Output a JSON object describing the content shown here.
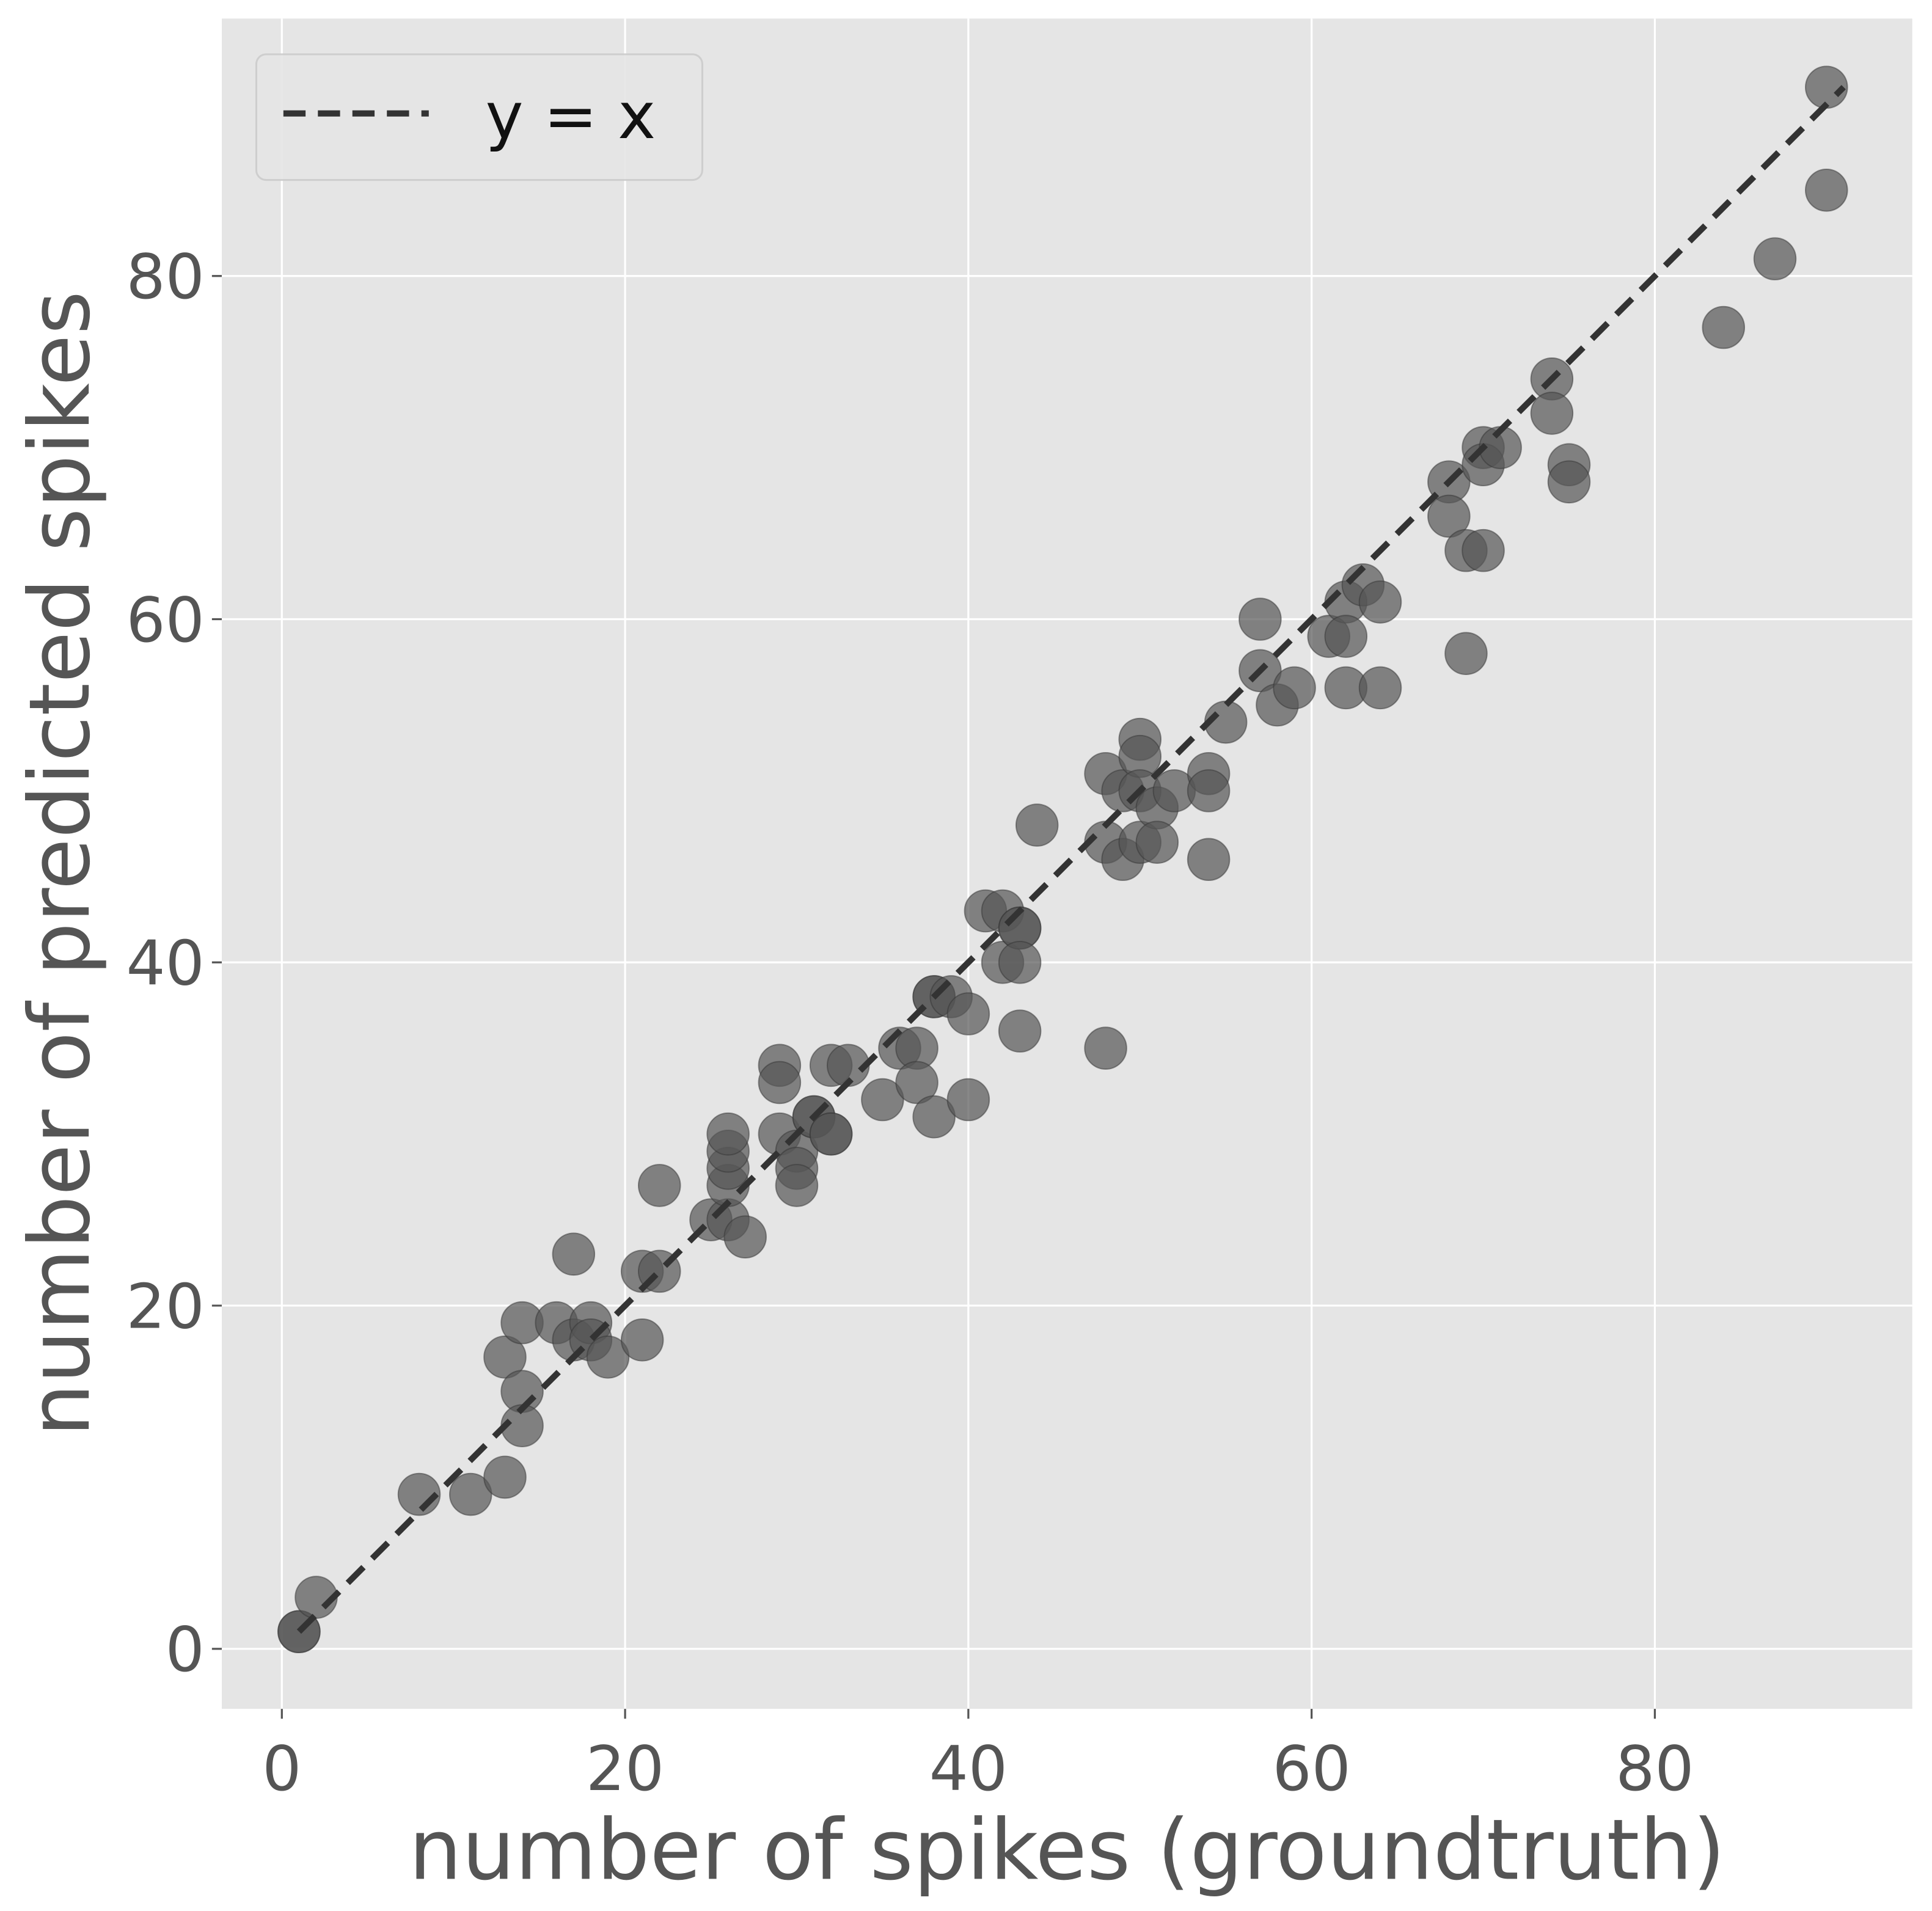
{
  "chart_data": {
    "type": "scatter",
    "title": "",
    "xlabel": "number of spikes (groundtruth)",
    "ylabel": "number of predicted spikes",
    "xlim": [
      -3.5,
      95
    ],
    "ylim": [
      -3.5,
      95
    ],
    "xticks": [
      0,
      20,
      40,
      60,
      80
    ],
    "yticks": [
      0,
      20,
      40,
      60,
      80
    ],
    "xtick_labels": [
      "0",
      "20",
      "40",
      "60",
      "80"
    ],
    "ytick_labels": [
      "0",
      "20",
      "40",
      "60",
      "80"
    ],
    "grid": true,
    "legend": {
      "placement": "top-left",
      "entries": [
        "y = x"
      ]
    },
    "reference_line": {
      "name": "y = x",
      "style": "dashed",
      "x": [
        1,
        91
      ],
      "y": [
        1,
        91
      ],
      "color": "#333333"
    },
    "marker_color": "#555555",
    "background_color": "#e5e5e5",
    "points": [
      [
        1,
        1
      ],
      [
        1,
        1
      ],
      [
        2,
        3
      ],
      [
        8,
        9
      ],
      [
        11,
        9
      ],
      [
        13,
        10
      ],
      [
        13,
        17
      ],
      [
        14,
        15
      ],
      [
        14,
        13
      ],
      [
        14,
        19
      ],
      [
        16,
        19
      ],
      [
        17,
        18
      ],
      [
        17,
        23
      ],
      [
        18,
        19
      ],
      [
        18,
        18
      ],
      [
        19,
        17
      ],
      [
        21,
        22
      ],
      [
        21,
        18
      ],
      [
        22,
        22
      ],
      [
        22,
        27
      ],
      [
        25,
        25
      ],
      [
        26,
        25
      ],
      [
        26,
        27
      ],
      [
        26,
        28
      ],
      [
        26,
        29
      ],
      [
        26,
        30
      ],
      [
        27,
        24
      ],
      [
        29,
        34
      ],
      [
        29,
        33
      ],
      [
        29,
        30
      ],
      [
        30,
        29
      ],
      [
        30,
        28
      ],
      [
        30,
        27
      ],
      [
        31,
        31
      ],
      [
        31,
        31
      ],
      [
        32,
        30
      ],
      [
        32,
        30
      ],
      [
        32,
        34
      ],
      [
        33,
        34
      ],
      [
        35,
        32
      ],
      [
        36,
        35
      ],
      [
        37,
        35
      ],
      [
        37,
        33
      ],
      [
        38,
        31
      ],
      [
        38,
        38
      ],
      [
        38,
        38
      ],
      [
        39,
        38
      ],
      [
        40,
        37
      ],
      [
        40,
        32
      ],
      [
        41,
        43
      ],
      [
        42,
        43
      ],
      [
        42,
        40
      ],
      [
        43,
        42
      ],
      [
        43,
        42
      ],
      [
        43,
        40
      ],
      [
        43,
        36
      ],
      [
        44,
        48
      ],
      [
        48,
        51
      ],
      [
        48,
        47
      ],
      [
        48,
        35
      ],
      [
        49,
        50
      ],
      [
        49,
        46
      ],
      [
        50,
        53
      ],
      [
        50,
        52
      ],
      [
        50,
        50
      ],
      [
        50,
        47
      ],
      [
        51,
        49
      ],
      [
        51,
        47
      ],
      [
        52,
        50
      ],
      [
        54,
        51
      ],
      [
        54,
        50
      ],
      [
        54,
        46
      ],
      [
        55,
        54
      ],
      [
        57,
        60
      ],
      [
        57,
        57
      ],
      [
        58,
        55
      ],
      [
        59,
        56
      ],
      [
        61,
        59
      ],
      [
        62,
        61
      ],
      [
        62,
        59
      ],
      [
        62,
        56
      ],
      [
        63,
        62
      ],
      [
        64,
        61
      ],
      [
        64,
        56
      ],
      [
        68,
        68
      ],
      [
        68,
        66
      ],
      [
        69,
        64
      ],
      [
        69,
        58
      ],
      [
        70,
        70
      ],
      [
        70,
        69
      ],
      [
        70,
        64
      ],
      [
        71,
        70
      ],
      [
        74,
        74
      ],
      [
        74,
        72
      ],
      [
        75,
        69
      ],
      [
        75,
        68
      ],
      [
        84,
        77
      ],
      [
        87,
        81
      ],
      [
        90,
        91
      ],
      [
        90,
        85
      ]
    ]
  }
}
